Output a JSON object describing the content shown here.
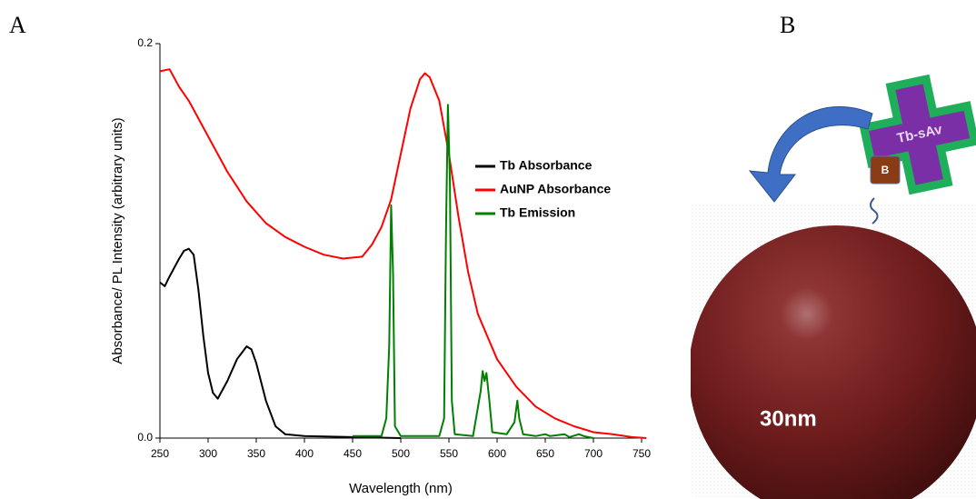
{
  "panel_labels": [
    "A",
    "B"
  ],
  "chart_data": {
    "type": "line",
    "xlabel": "Wavelength (nm)",
    "ylabel": "Absorbance/ PL Intensity (arbitrary units)",
    "xlim": [
      250,
      750
    ],
    "ylim": [
      0,
      0.2
    ],
    "xticks": [
      250,
      300,
      350,
      400,
      450,
      500,
      550,
      600,
      650,
      700,
      750
    ],
    "yticks": [
      {
        "value": 0,
        "label": "0.0"
      },
      0.2
    ],
    "legend": "upper right",
    "series": [
      {
        "name": "Tb Absorbance",
        "color": "#000000",
        "x": [
          250,
          255,
          260,
          270,
          275,
          280,
          285,
          290,
          295,
          300,
          305,
          310,
          320,
          330,
          340,
          345,
          350,
          360,
          370,
          380,
          400,
          450,
          500
        ],
        "values": [
          0.079,
          0.077,
          0.082,
          0.091,
          0.095,
          0.096,
          0.093,
          0.075,
          0.052,
          0.033,
          0.023,
          0.02,
          0.029,
          0.04,
          0.0465,
          0.045,
          0.038,
          0.019,
          0.006,
          0.002,
          0.001,
          0.0005,
          0
        ]
      },
      {
        "name": "AuNP Absorbance",
        "color": "#ff0000",
        "x": [
          250,
          260,
          270,
          280,
          300,
          320,
          340,
          360,
          380,
          400,
          420,
          440,
          460,
          470,
          480,
          490,
          500,
          510,
          520,
          525,
          530,
          540,
          550,
          560,
          570,
          580,
          600,
          620,
          640,
          660,
          680,
          700,
          720,
          740,
          755
        ],
        "values": [
          0.186,
          0.187,
          0.178,
          0.171,
          0.153,
          0.135,
          0.12,
          0.109,
          0.102,
          0.097,
          0.093,
          0.091,
          0.092,
          0.098,
          0.107,
          0.121,
          0.144,
          0.167,
          0.182,
          0.185,
          0.183,
          0.171,
          0.144,
          0.112,
          0.084,
          0.063,
          0.04,
          0.026,
          0.016,
          0.01,
          0.006,
          0.003,
          0.002,
          0.0005,
          0
        ]
      },
      {
        "name": "Tb Emission",
        "color": "#008000",
        "x": [
          450,
          480,
          485,
          488,
          490,
          492,
          494,
          500,
          540,
          545,
          547,
          549,
          551,
          553,
          556,
          575,
          583,
          585,
          587,
          589,
          592,
          595,
          610,
          618,
          621,
          623,
          627,
          640,
          650,
          655,
          670,
          675,
          685,
          690,
          700
        ],
        "values": [
          0.001,
          0.001,
          0.01,
          0.047,
          0.118,
          0.084,
          0.006,
          0.001,
          0.001,
          0.01,
          0.105,
          0.169,
          0.13,
          0.019,
          0.002,
          0.001,
          0.024,
          0.034,
          0.029,
          0.033,
          0.019,
          0.003,
          0.002,
          0.008,
          0.019,
          0.01,
          0.002,
          0.001,
          0.002,
          0.001,
          0.002,
          0.0005,
          0.002,
          0.001,
          0
        ]
      }
    ]
  },
  "diagram": {
    "protein": "Tb-sAv",
    "biotin": "B",
    "particle": "30nm"
  }
}
